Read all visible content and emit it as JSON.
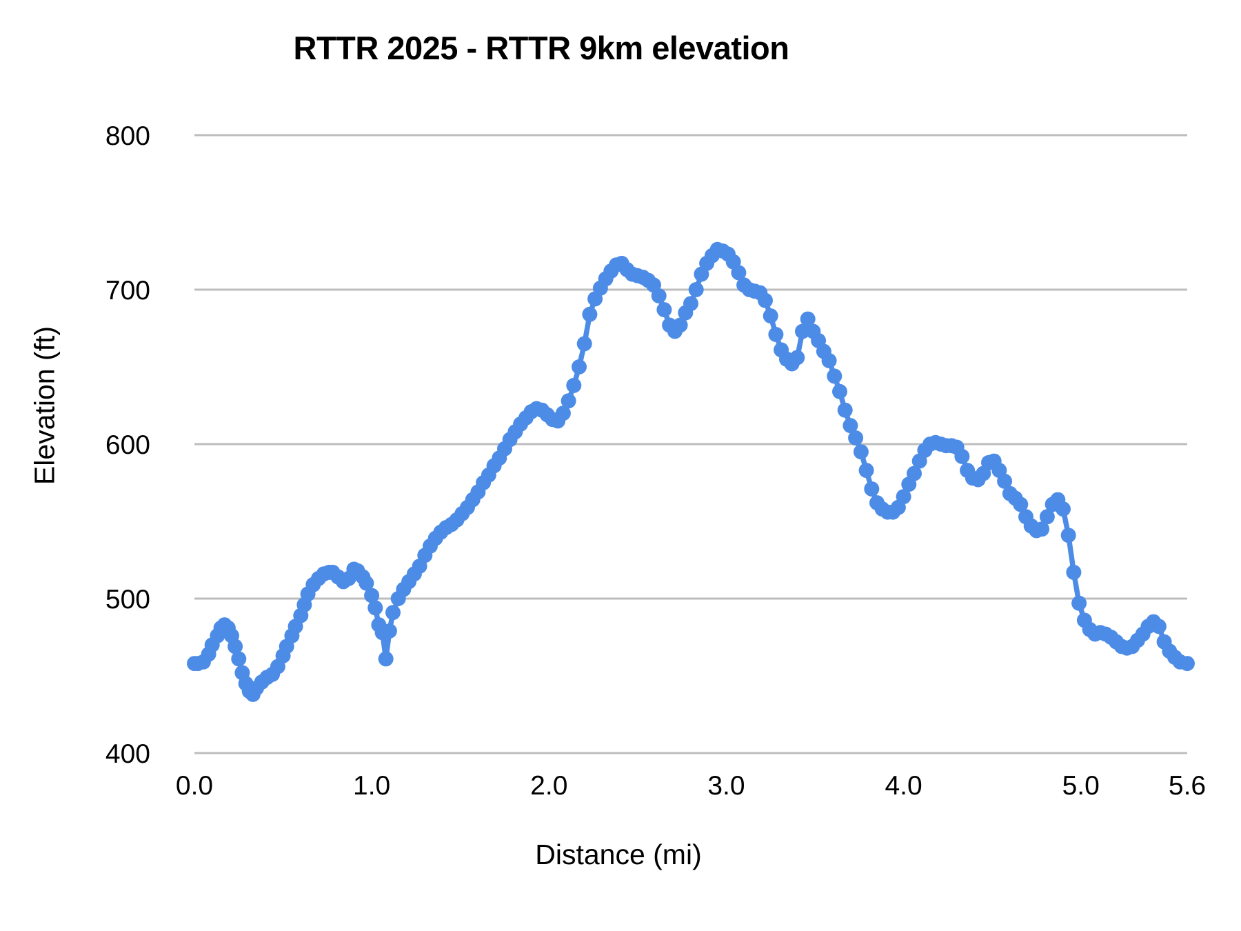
{
  "colors": {
    "background": "#ffffff",
    "gridline": "#bdbdbd",
    "text": "#000000",
    "series_blue": "#4d8ce6"
  },
  "chart_data": {
    "type": "line",
    "title": "RTTR 2025 - RTTR 9km elevation",
    "xlabel": "Distance (mi)",
    "ylabel": "Elevation (ft)",
    "xlim": [
      0,
      5.6
    ],
    "ylim": [
      400,
      800
    ],
    "grid": "horizontal-only",
    "legend": "none",
    "x_ticks": [
      {
        "value": 0.0,
        "label": "0.0"
      },
      {
        "value": 1.0,
        "label": "1.0"
      },
      {
        "value": 2.0,
        "label": "2.0"
      },
      {
        "value": 3.0,
        "label": "3.0"
      },
      {
        "value": 4.0,
        "label": "4.0"
      },
      {
        "value": 5.0,
        "label": "5.0"
      },
      {
        "value": 5.6,
        "label": "5.6"
      }
    ],
    "y_ticks": [
      {
        "value": 400,
        "label": "400"
      },
      {
        "value": 500,
        "label": "500"
      },
      {
        "value": 600,
        "label": "600"
      },
      {
        "value": 700,
        "label": "700"
      },
      {
        "value": 800,
        "label": "800"
      }
    ],
    "series": [
      {
        "name": "elevation",
        "color": "#4d8ce6",
        "marker": "circle",
        "points": [
          [
            0.0,
            458
          ],
          [
            0.02,
            458
          ],
          [
            0.05,
            459
          ],
          [
            0.08,
            464
          ],
          [
            0.1,
            470
          ],
          [
            0.13,
            476
          ],
          [
            0.15,
            481
          ],
          [
            0.17,
            483
          ],
          [
            0.19,
            481
          ],
          [
            0.21,
            476
          ],
          [
            0.23,
            469
          ],
          [
            0.25,
            461
          ],
          [
            0.27,
            452
          ],
          [
            0.29,
            445
          ],
          [
            0.31,
            440
          ],
          [
            0.33,
            438
          ],
          [
            0.35,
            442
          ],
          [
            0.38,
            446
          ],
          [
            0.41,
            449
          ],
          [
            0.44,
            451
          ],
          [
            0.47,
            456
          ],
          [
            0.5,
            463
          ],
          [
            0.52,
            469
          ],
          [
            0.55,
            476
          ],
          [
            0.57,
            482
          ],
          [
            0.6,
            489
          ],
          [
            0.62,
            496
          ],
          [
            0.64,
            503
          ],
          [
            0.67,
            509
          ],
          [
            0.7,
            513
          ],
          [
            0.73,
            516
          ],
          [
            0.76,
            517
          ],
          [
            0.78,
            517
          ],
          [
            0.81,
            514
          ],
          [
            0.84,
            511
          ],
          [
            0.87,
            513
          ],
          [
            0.9,
            519
          ],
          [
            0.92,
            518
          ],
          [
            0.95,
            514
          ],
          [
            0.97,
            510
          ],
          [
            1.0,
            502
          ],
          [
            1.02,
            494
          ],
          [
            1.04,
            483
          ],
          [
            1.06,
            478
          ],
          [
            1.08,
            461
          ],
          [
            1.1,
            479
          ],
          [
            1.12,
            491
          ],
          [
            1.15,
            500
          ],
          [
            1.18,
            506
          ],
          [
            1.21,
            511
          ],
          [
            1.24,
            516
          ],
          [
            1.27,
            521
          ],
          [
            1.3,
            528
          ],
          [
            1.33,
            534
          ],
          [
            1.36,
            539
          ],
          [
            1.39,
            543
          ],
          [
            1.42,
            546
          ],
          [
            1.45,
            548
          ],
          [
            1.48,
            551
          ],
          [
            1.51,
            555
          ],
          [
            1.54,
            559
          ],
          [
            1.57,
            564
          ],
          [
            1.6,
            569
          ],
          [
            1.63,
            575
          ],
          [
            1.66,
            580
          ],
          [
            1.69,
            586
          ],
          [
            1.72,
            591
          ],
          [
            1.75,
            597
          ],
          [
            1.78,
            603
          ],
          [
            1.81,
            608
          ],
          [
            1.84,
            613
          ],
          [
            1.87,
            617
          ],
          [
            1.9,
            621
          ],
          [
            1.93,
            623
          ],
          [
            1.96,
            622
          ],
          [
            1.99,
            619
          ],
          [
            2.02,
            616
          ],
          [
            2.05,
            615
          ],
          [
            2.08,
            620
          ],
          [
            2.11,
            628
          ],
          [
            2.14,
            638
          ],
          [
            2.17,
            650
          ],
          [
            2.2,
            665
          ],
          [
            2.23,
            684
          ],
          [
            2.26,
            694
          ],
          [
            2.29,
            701
          ],
          [
            2.32,
            707
          ],
          [
            2.35,
            712
          ],
          [
            2.38,
            716
          ],
          [
            2.41,
            717
          ],
          [
            2.44,
            713
          ],
          [
            2.47,
            710
          ],
          [
            2.5,
            709
          ],
          [
            2.53,
            708
          ],
          [
            2.56,
            706
          ],
          [
            2.59,
            703
          ],
          [
            2.62,
            696
          ],
          [
            2.65,
            687
          ],
          [
            2.68,
            677
          ],
          [
            2.71,
            673
          ],
          [
            2.74,
            677
          ],
          [
            2.77,
            685
          ],
          [
            2.8,
            691
          ],
          [
            2.83,
            700
          ],
          [
            2.86,
            710
          ],
          [
            2.89,
            717
          ],
          [
            2.92,
            722
          ],
          [
            2.95,
            726
          ],
          [
            2.98,
            725
          ],
          [
            3.01,
            723
          ],
          [
            3.04,
            718
          ],
          [
            3.07,
            711
          ],
          [
            3.1,
            703
          ],
          [
            3.13,
            700
          ],
          [
            3.16,
            699
          ],
          [
            3.19,
            698
          ],
          [
            3.22,
            693
          ],
          [
            3.25,
            683
          ],
          [
            3.28,
            671
          ],
          [
            3.31,
            661
          ],
          [
            3.34,
            655
          ],
          [
            3.37,
            652
          ],
          [
            3.4,
            656
          ],
          [
            3.43,
            673
          ],
          [
            3.46,
            681
          ],
          [
            3.49,
            673
          ],
          [
            3.52,
            667
          ],
          [
            3.55,
            660
          ],
          [
            3.58,
            654
          ],
          [
            3.61,
            644
          ],
          [
            3.64,
            634
          ],
          [
            3.67,
            622
          ],
          [
            3.7,
            612
          ],
          [
            3.73,
            604
          ],
          [
            3.76,
            595
          ],
          [
            3.79,
            583
          ],
          [
            3.82,
            571
          ],
          [
            3.85,
            562
          ],
          [
            3.88,
            558
          ],
          [
            3.91,
            556
          ],
          [
            3.94,
            556
          ],
          [
            3.97,
            559
          ],
          [
            4.0,
            566
          ],
          [
            4.03,
            574
          ],
          [
            4.06,
            581
          ],
          [
            4.09,
            589
          ],
          [
            4.12,
            596
          ],
          [
            4.15,
            600
          ],
          [
            4.18,
            601
          ],
          [
            4.21,
            600
          ],
          [
            4.24,
            599
          ],
          [
            4.27,
            599
          ],
          [
            4.3,
            598
          ],
          [
            4.33,
            592
          ],
          [
            4.36,
            583
          ],
          [
            4.39,
            578
          ],
          [
            4.42,
            577
          ],
          [
            4.45,
            581
          ],
          [
            4.48,
            588
          ],
          [
            4.51,
            589
          ],
          [
            4.54,
            583
          ],
          [
            4.57,
            576
          ],
          [
            4.6,
            568
          ],
          [
            4.63,
            565
          ],
          [
            4.66,
            561
          ],
          [
            4.69,
            553
          ],
          [
            4.72,
            547
          ],
          [
            4.75,
            544
          ],
          [
            4.78,
            545
          ],
          [
            4.81,
            553
          ],
          [
            4.84,
            561
          ],
          [
            4.87,
            564
          ],
          [
            4.9,
            558
          ],
          [
            4.93,
            541
          ],
          [
            4.96,
            517
          ],
          [
            4.99,
            497
          ],
          [
            5.02,
            486
          ],
          [
            5.05,
            480
          ],
          [
            5.08,
            477
          ],
          [
            5.11,
            478
          ],
          [
            5.14,
            477
          ],
          [
            5.17,
            475
          ],
          [
            5.2,
            472
          ],
          [
            5.23,
            469
          ],
          [
            5.26,
            468
          ],
          [
            5.29,
            469
          ],
          [
            5.32,
            473
          ],
          [
            5.35,
            477
          ],
          [
            5.38,
            482
          ],
          [
            5.41,
            485
          ],
          [
            5.44,
            482
          ],
          [
            5.47,
            472
          ],
          [
            5.5,
            466
          ],
          [
            5.53,
            462
          ],
          [
            5.56,
            459
          ],
          [
            5.6,
            458
          ]
        ]
      }
    ]
  }
}
